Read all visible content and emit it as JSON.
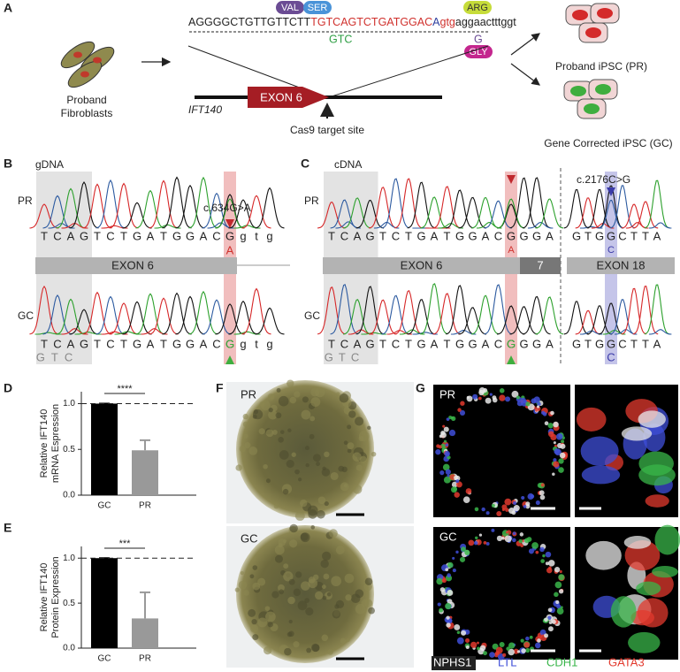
{
  "panel_a": {
    "label": "A",
    "sequence": [
      "AGGGGCTGTTGTTCTT",
      "TGTCAGTCTGATGGAC",
      "A",
      "gtg",
      "aggaactttggt"
    ],
    "amino_acids": [
      "VAL",
      "SER",
      "ARG",
      "GLY"
    ],
    "corrected": [
      "GTC",
      "G"
    ],
    "fibroblasts": [
      "Proband",
      "Fibroblasts"
    ],
    "gene": "IFT140",
    "exon": "EXON 6",
    "cas9": "Cas9 target site",
    "pr_cells": "Proband iPSC (PR)",
    "gc_cells": "Gene Corrected iPSC (GC)"
  },
  "panel_b": {
    "label": "B",
    "source": "gDNA",
    "mutation": "c.634G>A",
    "pr": "PR",
    "gc": "GC",
    "bases": [
      "T",
      "C",
      "A",
      "G",
      "T",
      "C",
      "T",
      "G",
      "A",
      "T",
      "G",
      "G",
      "A",
      "C",
      "G",
      "g",
      "t",
      "g"
    ],
    "pr_alt": "A",
    "exon": "EXON 6",
    "gc_alt": [
      "GTC",
      "G"
    ]
  },
  "panel_c": {
    "label": "C",
    "source": "cDNA",
    "mutation": "c.2176C>G",
    "pr": "PR",
    "gc": "GC",
    "bases": [
      "T",
      "C",
      "A",
      "G",
      "T",
      "C",
      "T",
      "G",
      "A",
      "T",
      "G",
      "G",
      "A",
      "C",
      "G",
      "G",
      "G",
      "A"
    ],
    "bases_2": [
      "G",
      "T",
      "G",
      "G",
      "C",
      "T",
      "T",
      "A"
    ],
    "pr_alt": [
      "A",
      "C"
    ],
    "exons": [
      "EXON 6",
      "7",
      "EXON 18"
    ],
    "gc_alt": [
      "GTC",
      "G",
      "C"
    ]
  },
  "panel_d": {
    "label": "D",
    "chart": {
      "type": "bar",
      "ylabel": [
        "Relative IFT140",
        "mRNA Espression"
      ],
      "categories": [
        "GC",
        "PR"
      ],
      "values": [
        1.0,
        0.49
      ],
      "errors": [
        0,
        0.11
      ],
      "colors": [
        "#000000",
        "#999999"
      ],
      "ylim": [
        0,
        1.13
      ],
      "yticks": [
        {
          "value": 0,
          "label": "0.0"
        },
        0.5,
        {
          "value": 1,
          "label": "1.0"
        }
      ],
      "significance": "****"
    }
  },
  "panel_e": {
    "label": "E",
    "chart": {
      "type": "bar",
      "ylabel": [
        "Relative IFT140",
        "Protein Expression"
      ],
      "categories": [
        "GC",
        "PR"
      ],
      "values": [
        1.0,
        0.33
      ],
      "errors": [
        0,
        0.29
      ],
      "colors": [
        "#000000",
        "#999999"
      ],
      "ylim": [
        0,
        1.13
      ],
      "yticks": [
        {
          "value": 0,
          "label": "0.0"
        },
        0.5,
        {
          "value": 1,
          "label": "1.0"
        }
      ],
      "significance": "***"
    }
  },
  "panel_f": {
    "label": "F",
    "top": "PR",
    "bottom": "GC"
  },
  "panel_g": {
    "label": "G",
    "top": "PR",
    "bottom": "GC",
    "legend": [
      "NPHS1",
      "LTL",
      "CDH1",
      "GATA3"
    ]
  }
}
